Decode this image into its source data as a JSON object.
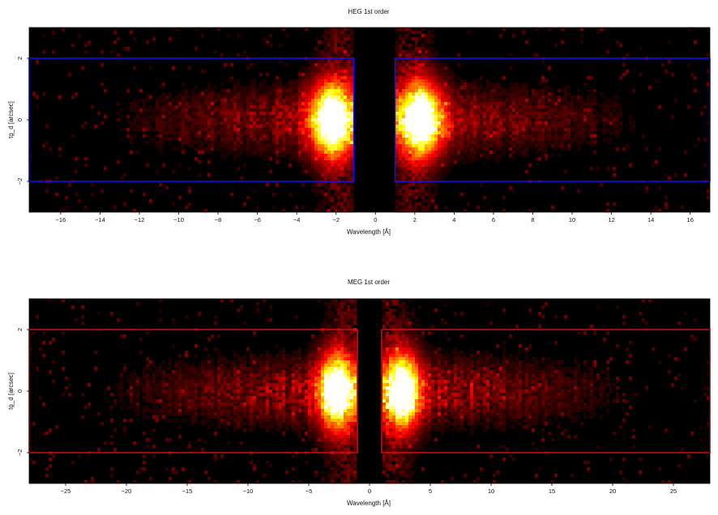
{
  "chart_data": [
    {
      "type": "heatmap",
      "title": "HEG 1st order",
      "xlabel": "Wavelength [Å]",
      "ylabel": "tg_d [arcsec]",
      "xlim": [
        -17.6,
        17.0
      ],
      "ylim": [
        -3.0,
        3.0
      ],
      "xticks": [
        -16,
        -14,
        -12,
        -10,
        -8,
        -6,
        -4,
        -2,
        0,
        2,
        4,
        6,
        8,
        10,
        12,
        14,
        16
      ],
      "yticks": [
        -2,
        0,
        2
      ],
      "colormap": "hot",
      "background": "#000000",
      "region_color": "#1010ff",
      "regions": [
        {
          "x": [
            -17.6,
            -1.1
          ],
          "y": [
            -2.0,
            2.0
          ]
        },
        {
          "x": [
            1.0,
            17.0
          ],
          "y": [
            -2.0,
            2.0
          ]
        }
      ],
      "peaks_x": [
        -2.2,
        2.3
      ],
      "zero_order_gap": [
        -1.1,
        1.0
      ]
    },
    {
      "type": "heatmap",
      "title": "MEG 1st order",
      "xlabel": "Wavelength [Å]",
      "ylabel": "tg_d [arcsec]",
      "xlim": [
        -28.0,
        28.0
      ],
      "ylim": [
        -3.0,
        3.0
      ],
      "xticks": [
        -25,
        -20,
        -15,
        -10,
        -5,
        0,
        5,
        10,
        15,
        20,
        25
      ],
      "yticks": [
        -2,
        0,
        2
      ],
      "colormap": "hot",
      "background": "#000000",
      "region_color": "#d01010",
      "regions": [
        {
          "x": [
            -28.0,
            -1.0
          ],
          "y": [
            -2.0,
            2.0
          ]
        },
        {
          "x": [
            1.0,
            28.0
          ],
          "y": [
            -2.0,
            2.0
          ]
        }
      ],
      "peaks_x": [
        -2.7,
        2.7
      ],
      "zero_order_gap": [
        -1.0,
        1.0
      ]
    }
  ]
}
